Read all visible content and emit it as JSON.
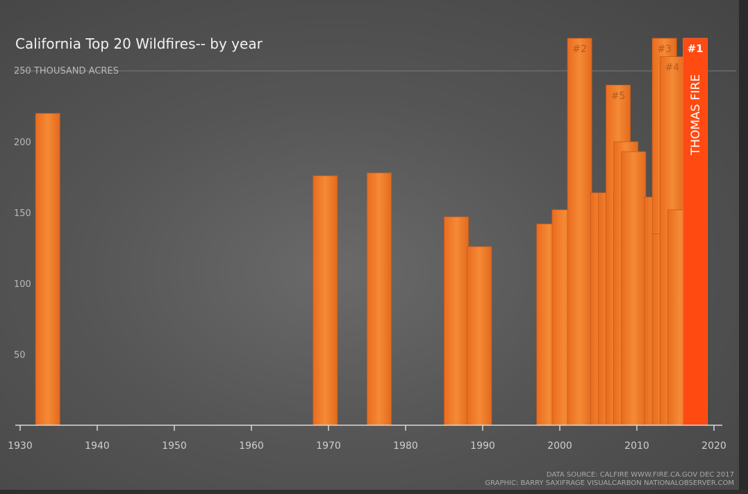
{
  "chart_data": {
    "type": "bar",
    "title": "California Top 20 Wildfires-- by year",
    "ylabel": "250 THOUSAND ACRES",
    "xlim": [
      1930,
      2020
    ],
    "ylim": [
      0,
      250
    ],
    "xticks": [
      "1930",
      "1940",
      "1950",
      "1960",
      "1970",
      "1980",
      "1990",
      "2000",
      "2010",
      "2020"
    ],
    "yticks": [
      "50",
      "100",
      "150",
      "200"
    ],
    "series": [
      {
        "x": [
          1932,
          1968,
          1975,
          1985,
          1988,
          1997,
          1999,
          2001,
          2004,
          2005,
          2006,
          2006,
          2007,
          2007,
          2008,
          2008,
          2011,
          2012,
          2012,
          2013,
          2014,
          2016
        ],
        "values": [
          220,
          176,
          178,
          147,
          126,
          142,
          152,
          273,
          164,
          164,
          164,
          240,
          164,
          200,
          163,
          193,
          161,
          273,
          135,
          260,
          152,
          273
        ],
        "labels": [
          "",
          "",
          "",
          "",
          "",
          "",
          "",
          "#2",
          "",
          "",
          "",
          "#5",
          "",
          "",
          "",
          "",
          "",
          "#3",
          "",
          "#4",
          "",
          "#1"
        ]
      }
    ],
    "highlight": {
      "label": "THOMAS FIRE",
      "color": "#ff4a12"
    },
    "bar_color": "#f07a28",
    "grid": false,
    "source_lines": [
      "DATA SOURCE: CALFIRE WWW.FIRE.CA.GOV DEC 2017",
      "GRAPHIC: BARRY SAXIFRAGE VISUALCARBON NATIONALOBSERVER.COM"
    ]
  }
}
